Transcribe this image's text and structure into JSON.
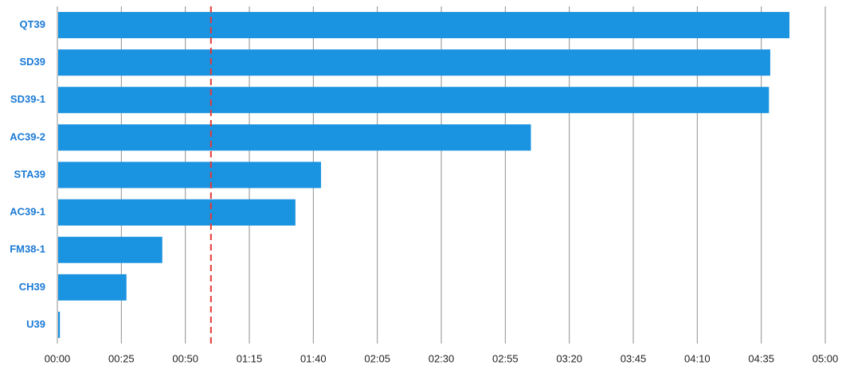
{
  "chart_data": {
    "type": "bar",
    "orientation": "horizontal",
    "title": "",
    "xlabel": "",
    "ylabel": "",
    "categories": [
      "QT39",
      "SD39",
      "SD39-1",
      "AC39-2",
      "STA39",
      "AC39-1",
      "FM38-1",
      "CH39",
      "U39"
    ],
    "values": [
      286,
      278.5,
      278,
      185,
      103,
      93,
      41,
      27,
      1
    ],
    "x_ticks": [
      0,
      25,
      50,
      75,
      100,
      125,
      150,
      175,
      200,
      225,
      250,
      275,
      300
    ],
    "x_tick_labels": [
      "00:00",
      "00:25",
      "00:50",
      "01:15",
      "01:40",
      "02:05",
      "02:30",
      "02:55",
      "03:20",
      "03:45",
      "04:10",
      "04:35",
      "05:00"
    ],
    "xlim": [
      0,
      300
    ],
    "reference_line": {
      "value": 60,
      "color": "#e53935",
      "style": "dashed"
    },
    "grid": "vertical",
    "colors": {
      "bar": "#1a93e0",
      "category_label": "#1a7ad6"
    }
  }
}
